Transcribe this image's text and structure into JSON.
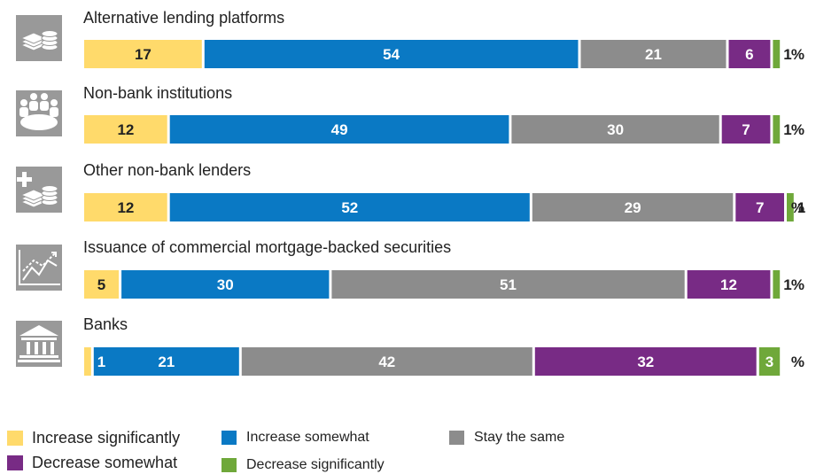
{
  "chart_data": {
    "type": "bar",
    "orientation": "horizontal",
    "stacked": true,
    "unit": "%",
    "categories": [
      "Alternative lending platforms",
      "Non-bank institutions",
      "Other non-bank lenders",
      "Issuance of commercial mortgage-backed securities",
      "Banks"
    ],
    "category_icons": [
      "coins-stack-icon",
      "people-meeting-icon",
      "plus-coins-icon",
      "line-chart-icon",
      "bank-building-icon"
    ],
    "series": [
      {
        "name": "Increase significantly",
        "color": "#FFDA6B",
        "values": [
          17,
          12,
          12,
          5,
          1
        ]
      },
      {
        "name": "Increase somewhat",
        "color": "#0A79C4",
        "values": [
          54,
          49,
          52,
          30,
          21
        ]
      },
      {
        "name": "Stay the same",
        "color": "#8C8C8C",
        "values": [
          21,
          30,
          29,
          51,
          42
        ]
      },
      {
        "name": "Decrease somewhat",
        "color": "#782B85",
        "values": [
          6,
          7,
          7,
          12,
          32
        ]
      },
      {
        "name": "Decrease significantly",
        "color": "#6FA83A",
        "values": [
          1,
          1,
          1,
          1,
          3
        ]
      }
    ],
    "data_labels": [
      [
        "17",
        "54",
        "21",
        "6",
        "1"
      ],
      [
        "12",
        "49",
        "30",
        "7",
        "1"
      ],
      [
        "12",
        "52",
        "29",
        "7",
        "1"
      ],
      [
        "5",
        "30",
        "51",
        "12",
        "1"
      ],
      [
        "",
        "1 21",
        "42",
        "32",
        "3"
      ]
    ],
    "legend": {
      "placement": "bottom",
      "rows": [
        [
          "Increase significantly",
          "Increase somewhat",
          "Stay the same"
        ],
        [
          "Decrease somewhat",
          "Decrease significantly"
        ]
      ]
    },
    "grid": false
  },
  "colors": {
    "icon_bg": "#999999",
    "label_text": "#222222",
    "bar_text": "#ffffff",
    "yellow_text": "#222222"
  }
}
